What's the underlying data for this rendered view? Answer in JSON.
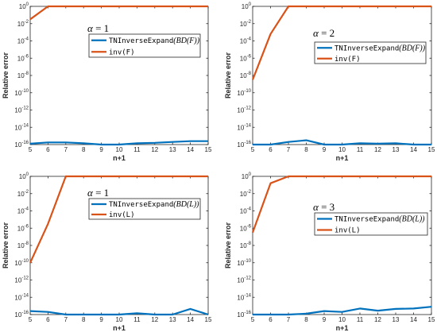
{
  "chart_data": [
    {
      "type": "line",
      "annotation": "α = 1",
      "xlabel": "n+1",
      "ylabel": "Relative error",
      "xlim": [
        5,
        15
      ],
      "ylim_log10": [
        -16,
        0
      ],
      "yscale": "log",
      "xticks": [
        "5",
        "6",
        "7",
        "8",
        "9",
        "10",
        "11",
        "12",
        "13",
        "14",
        "15"
      ],
      "yticks": [
        "10^-16",
        "10^-14",
        "10^-12",
        "10^-10",
        "10^-8",
        "10^-6",
        "10^-4",
        "10^-2",
        "10^0"
      ],
      "x": [
        5,
        6,
        7,
        8,
        9,
        10,
        11,
        12,
        13,
        14,
        15
      ],
      "legend_placement": "top-right",
      "series": [
        {
          "name": "TNInverseExpand(BD(F))",
          "name_main": "TNInverseExpand",
          "name_math": "(BD(F))",
          "color": "#0072BD",
          "log10_values": [
            -15.9,
            -15.75,
            -15.75,
            -15.85,
            -16,
            -16,
            -15.85,
            -15.8,
            -15.7,
            -15.6,
            -15.6
          ]
        },
        {
          "name": "inv(F)",
          "color": "#D95319",
          "log10_values": [
            -1.5,
            0,
            0,
            0,
            0,
            0,
            0,
            0,
            0,
            0,
            0
          ]
        }
      ]
    },
    {
      "type": "line",
      "annotation": "α = 2",
      "xlabel": "n+1",
      "ylabel": "Relative error",
      "xlim": [
        5,
        15
      ],
      "ylim_log10": [
        -16,
        0
      ],
      "yscale": "log",
      "xticks": [
        "5",
        "6",
        "7",
        "8",
        "9",
        "10",
        "11",
        "12",
        "13",
        "14",
        "15"
      ],
      "yticks": [
        "10^-16",
        "10^-14",
        "10^-12",
        "10^-10",
        "10^-8",
        "10^-6",
        "10^-4",
        "10^-2",
        "10^0"
      ],
      "x": [
        5,
        6,
        7,
        8,
        9,
        10,
        11,
        12,
        13,
        14,
        15
      ],
      "legend_placement": "top-right",
      "series": [
        {
          "name": "TNInverseExpand(BD(F))",
          "name_main": "TNInverseExpand",
          "name_math": "(BD(F))",
          "color": "#0072BD",
          "log10_values": [
            -16,
            -16,
            -15.7,
            -15.5,
            -16,
            -16,
            -15.85,
            -15.9,
            -15.85,
            -16,
            -16
          ]
        },
        {
          "name": "inv(F)",
          "color": "#D95319",
          "log10_values": [
            -8.5,
            -3.2,
            0,
            0,
            0,
            0,
            0,
            0,
            0,
            0,
            0
          ]
        }
      ]
    },
    {
      "type": "line",
      "annotation": "α = 1",
      "xlabel": "n+1",
      "ylabel": "Relative error",
      "xlim": [
        5,
        15
      ],
      "ylim_log10": [
        -16,
        0
      ],
      "yscale": "log",
      "xticks": [
        "5",
        "6",
        "7",
        "8",
        "9",
        "10",
        "11",
        "12",
        "13",
        "14",
        "15"
      ],
      "yticks": [
        "10^-16",
        "10^-14",
        "10^-12",
        "10^-10",
        "10^-8",
        "10^-6",
        "10^-4",
        "10^-2",
        "10^0"
      ],
      "x": [
        5,
        6,
        7,
        8,
        9,
        10,
        11,
        12,
        13,
        14,
        15
      ],
      "legend_placement": "top-right",
      "series": [
        {
          "name": "TNInverseExpand(BD(L))",
          "name_main": "TNInverseExpand",
          "name_math": "(BD(L))",
          "color": "#0072BD",
          "log10_values": [
            -15.6,
            -15.7,
            -16,
            -16,
            -16,
            -16,
            -15.85,
            -16,
            -16,
            -15.35,
            -16
          ]
        },
        {
          "name": "inv(L)",
          "color": "#D95319",
          "log10_values": [
            -10,
            -5.5,
            0,
            0,
            0,
            0,
            0,
            0,
            0,
            0,
            0
          ]
        }
      ]
    },
    {
      "type": "line",
      "annotation": "α = 3",
      "xlabel": "n+1",
      "ylabel": "Relative error",
      "xlim": [
        5,
        15
      ],
      "ylim_log10": [
        -16,
        0
      ],
      "yscale": "log",
      "xticks": [
        "5",
        "6",
        "7",
        "8",
        "9",
        "10",
        "11",
        "12",
        "13",
        "14",
        "15"
      ],
      "yticks": [
        "10^-16",
        "10^-14",
        "10^-12",
        "10^-10",
        "10^-8",
        "10^-6",
        "10^-4",
        "10^-2",
        "10^0"
      ],
      "x": [
        5,
        6,
        7,
        8,
        9,
        10,
        11,
        12,
        13,
        14,
        15
      ],
      "legend_placement": "top-right",
      "series": [
        {
          "name": "TNInverseExpand(BD(L))",
          "name_main": "TNInverseExpand",
          "name_math": "(BD(L))",
          "color": "#0072BD",
          "log10_values": [
            -16,
            -16,
            -16,
            -15.9,
            -15.6,
            -15.7,
            -15.3,
            -15.55,
            -15.35,
            -15.3,
            -15.1
          ]
        },
        {
          "name": "inv(L)",
          "color": "#D95319",
          "log10_values": [
            -6.5,
            -0.8,
            0,
            0,
            0,
            0,
            0,
            0,
            0,
            0,
            0
          ]
        }
      ]
    }
  ]
}
